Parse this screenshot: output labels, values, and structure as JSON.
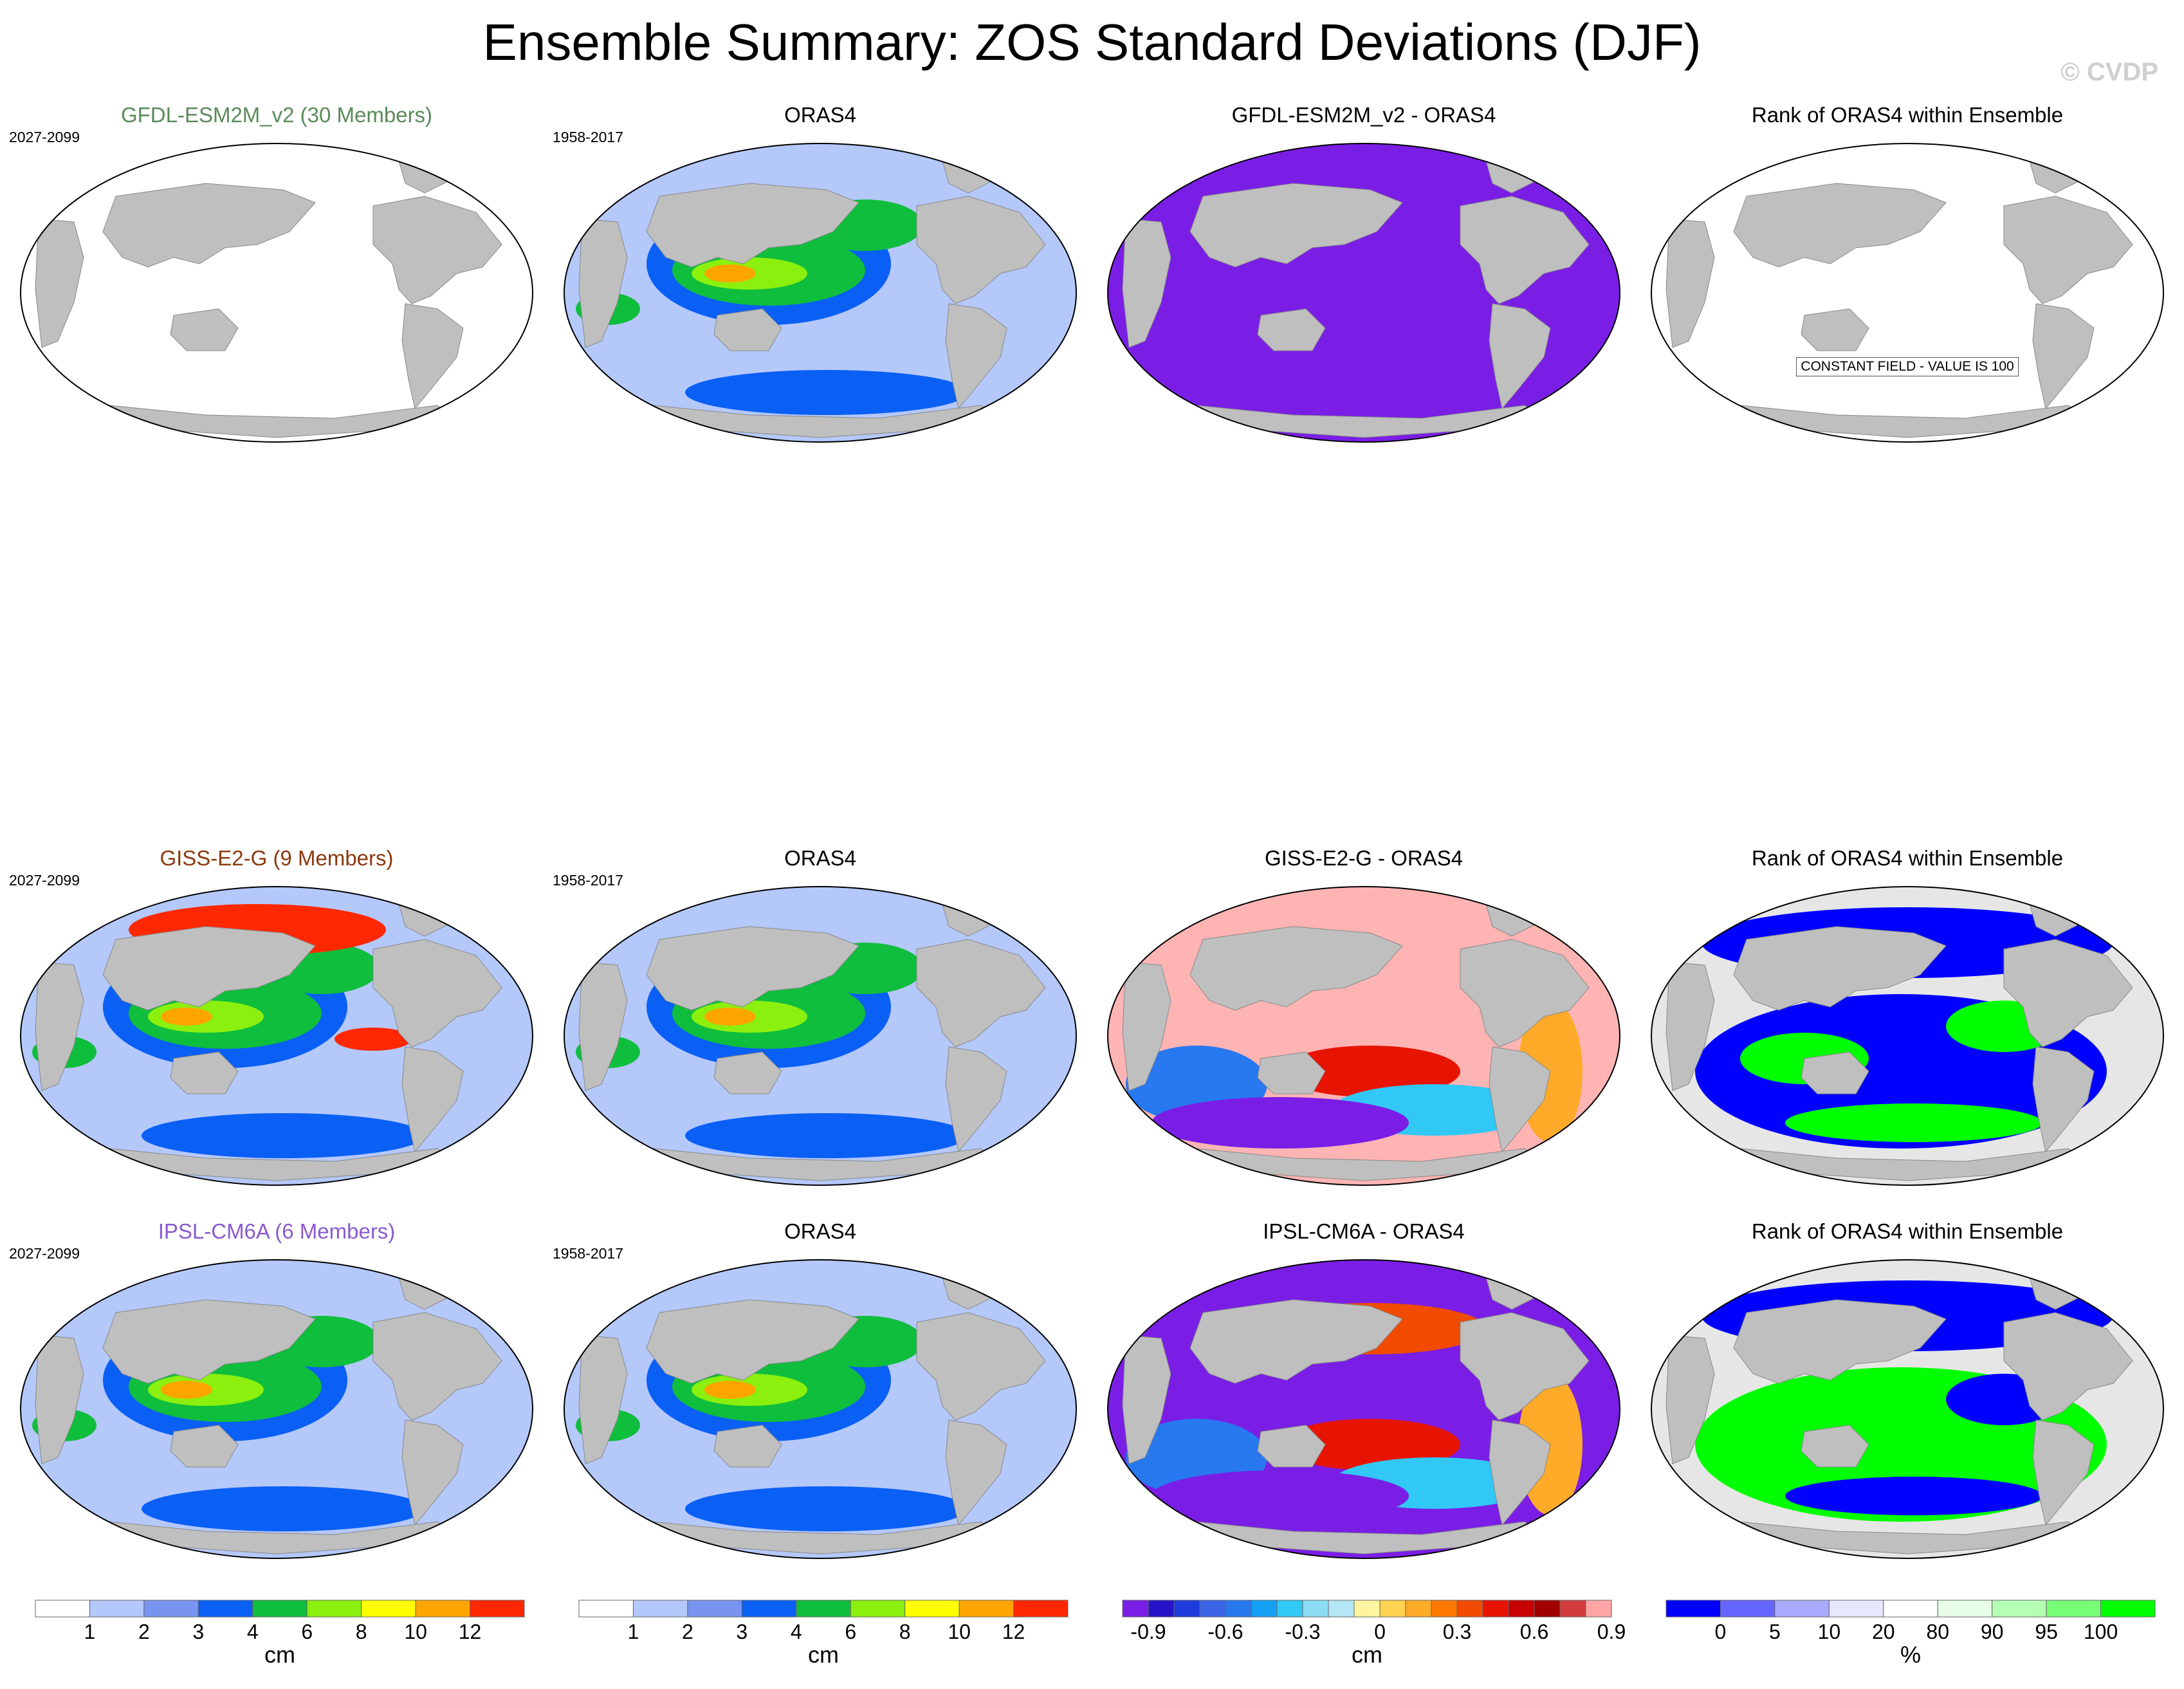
{
  "title": "Ensemble Summary: ZOS Standard Deviations (DJF)",
  "watermark": "© CVDP",
  "rows": [
    {
      "model": "GFDL-ESM2M_v2 (30 Members)",
      "model_color": "#5a8a5a",
      "period": "2027-2099",
      "obs": "ORAS4",
      "obs_period": "1958-2017",
      "diff": "GFDL-ESM2M_v2 - ORAS4",
      "rank": "Rank of ORAS4 within Ensemble",
      "rank_note": "CONSTANT FIELD - VALUE IS 100"
    },
    {
      "model": "GISS-E2-G (9 Members)",
      "model_color": "#8b3a0f",
      "period": "2027-2099",
      "obs": "ORAS4",
      "obs_period": "1958-2017",
      "diff": "GISS-E2-G - ORAS4",
      "rank": "Rank of ORAS4 within Ensemble",
      "rank_note": ""
    },
    {
      "model": "IPSL-CM6A (6 Members)",
      "model_color": "#8a5ad0",
      "period": "2027-2099",
      "obs": "ORAS4",
      "obs_period": "1958-2017",
      "diff": "IPSL-CM6A - ORAS4",
      "rank": "Rank of ORAS4 within Ensemble",
      "rank_note": ""
    }
  ],
  "colorbars": {
    "std": {
      "unit": "cm",
      "colors": [
        "#ffffff",
        "#b4c8fa",
        "#7894f0",
        "#0a5ff5",
        "#0fbe3c",
        "#8cf00f",
        "#ffff00",
        "#ffa500",
        "#ff2800"
      ],
      "labels": [
        "1",
        "2",
        "3",
        "4",
        "6",
        "8",
        "10",
        "12"
      ]
    },
    "diff": {
      "unit": "cm",
      "colors": [
        "#7a1ee6",
        "#2814c8",
        "#1e3cdc",
        "#3c64e6",
        "#2878f0",
        "#14a0f5",
        "#32c8f5",
        "#8cdcf5",
        "#b4e6f5",
        "#fff5a0",
        "#ffd250",
        "#ffaa28",
        "#ff7800",
        "#f04b00",
        "#e61400",
        "#c80000",
        "#a00000",
        "#d23c3c",
        "#ffa5a5"
      ],
      "labels": [
        "-0.9",
        "-0.6",
        "-0.3",
        "0",
        "0.3",
        "0.6",
        "0.9"
      ]
    },
    "rank": {
      "unit": "%",
      "colors": [
        "#0000ff",
        "#6464ff",
        "#aaaaff",
        "#e6e6ff",
        "#ffffff",
        "#e6ffe6",
        "#b4ffb4",
        "#78ff78",
        "#00ff00"
      ],
      "labels": [
        "0",
        "5",
        "10",
        "20",
        "80",
        "90",
        "95",
        "100"
      ]
    }
  },
  "map_fill": {
    "land": "#bfbfbf",
    "std_ocean": "#b4c8fa",
    "diff_ocean": "#7a1ee6",
    "rank_ocean": "#e6e6e6",
    "empty_ocean": "#ffffff"
  }
}
